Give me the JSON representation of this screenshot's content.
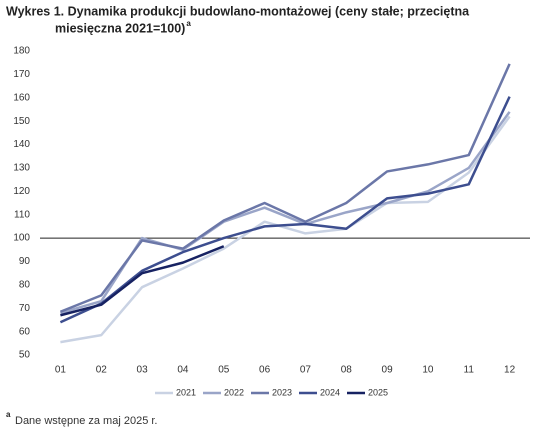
{
  "chart_data": {
    "type": "line",
    "title": "Wykres 1. Dynamika produkcji budowlano-montażowej (ceny stałe; przeciętna miesięczna 2021=100)",
    "title_superscript": "a",
    "footnote_marker": "a",
    "footnote": "Dane wstępne za maj 2025 r.",
    "categories": [
      "01",
      "02",
      "03",
      "04",
      "05",
      "06",
      "07",
      "08",
      "09",
      "10",
      "11",
      "12"
    ],
    "series": [
      {
        "name": "2021",
        "color": "#c9d2e3",
        "values": [
          55.5,
          58.5,
          79,
          87,
          95.5,
          107,
          102,
          104,
          115,
          115.5,
          128,
          152
        ]
      },
      {
        "name": "2022",
        "color": "#9aa5c8",
        "values": [
          68,
          73,
          100,
          95,
          107,
          113,
          106,
          111,
          115,
          120,
          130,
          154
        ]
      },
      {
        "name": "2023",
        "color": "#6b77a8",
        "values": [
          68.5,
          75.5,
          99,
          95.5,
          107.5,
          115,
          107,
          115,
          128.5,
          131.5,
          135.5,
          174.5
        ]
      },
      {
        "name": "2024",
        "color": "#3d4e8f",
        "values": [
          64,
          72,
          86,
          94,
          100,
          105,
          106,
          104,
          117,
          119,
          123,
          160.5
        ]
      },
      {
        "name": "2025",
        "color": "#172262",
        "values": [
          67,
          71.5,
          85,
          89.5,
          96.5,
          null,
          null,
          null,
          null,
          null,
          null,
          null
        ]
      }
    ],
    "ylim": [
      50,
      180
    ],
    "yticks": [
      50,
      60,
      70,
      80,
      90,
      100,
      110,
      120,
      130,
      140,
      150,
      160,
      170,
      180
    ],
    "reference_line": 100,
    "grid": false,
    "legend": "bottom"
  }
}
